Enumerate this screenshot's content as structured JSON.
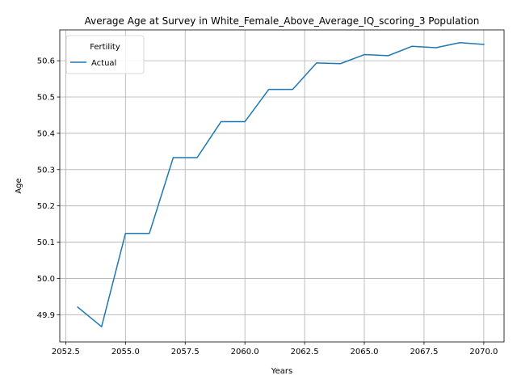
{
  "chart_data": {
    "type": "line",
    "title": "Average Age at Survey in White_Female_Above_Average_IQ_scoring_3 Population",
    "xlabel": "Years",
    "ylabel": "Age",
    "xlim": [
      2052.25,
      2070.85
    ],
    "ylim": [
      49.825,
      50.685
    ],
    "xticks": [
      2052.5,
      2055.0,
      2057.5,
      2060.0,
      2062.5,
      2065.0,
      2067.5,
      2070.0
    ],
    "xtick_labels": [
      "2052.5",
      "2055.0",
      "2057.5",
      "2060.0",
      "2062.5",
      "2065.0",
      "2067.5",
      "2070.0"
    ],
    "yticks": [
      49.9,
      50.0,
      50.1,
      50.2,
      50.3,
      50.4,
      50.5,
      50.6
    ],
    "ytick_labels": [
      "49.9",
      "50.0",
      "50.1",
      "50.2",
      "50.3",
      "50.4",
      "50.5",
      "50.6"
    ],
    "grid": true,
    "legend": {
      "title": "Fertility",
      "placement": "top-left"
    },
    "series": [
      {
        "name": "Actual",
        "color": "#1f77b4",
        "x": [
          2053,
          2054,
          2055,
          2056,
          2057,
          2058,
          2059,
          2060,
          2061,
          2062,
          2063,
          2064,
          2065,
          2066,
          2067,
          2068,
          2069,
          2070
        ],
        "y": [
          49.921,
          49.867,
          50.124,
          50.124,
          50.333,
          50.333,
          50.432,
          50.432,
          50.521,
          50.521,
          50.594,
          50.592,
          50.617,
          50.614,
          50.64,
          50.636,
          50.65,
          50.645
        ]
      }
    ]
  }
}
